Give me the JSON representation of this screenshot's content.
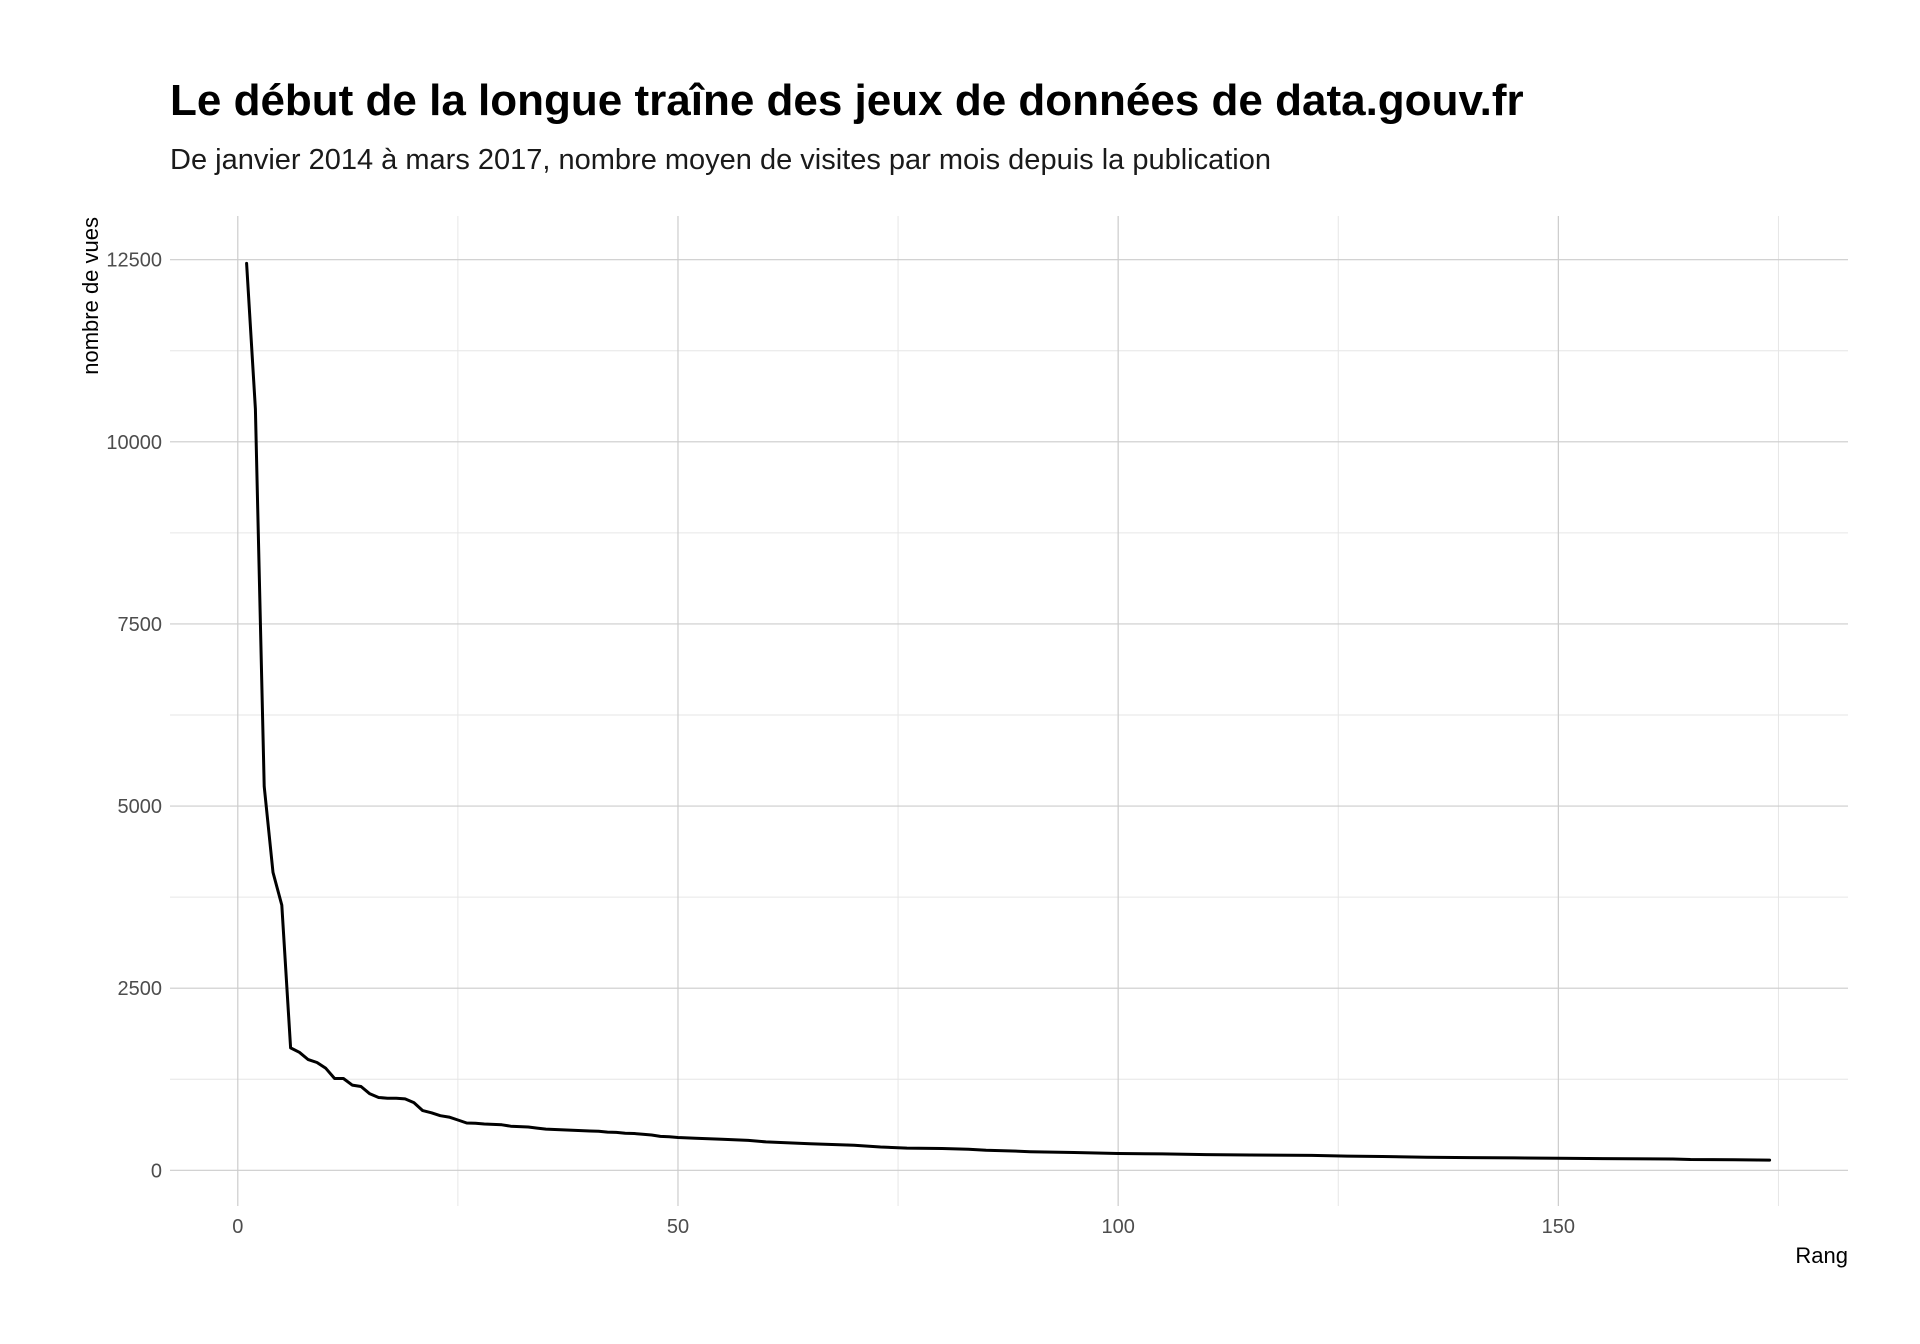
{
  "chart_data": {
    "type": "line",
    "title": "Le début de la longue traîne des jeux de données de data.gouv.fr",
    "subtitle": "De janvier 2014 à mars 2017, nombre moyen de visites par mois depuis la publication",
    "xlabel": "Rang",
    "ylabel": "nombre de vues",
    "xlim": [
      -7.7,
      182.9
    ],
    "ylim": [
      -490,
      13100
    ],
    "x_ticks": [
      0,
      50,
      100,
      150
    ],
    "x_tick_labels": [
      "0",
      "50",
      "100",
      "150"
    ],
    "x_minor_ticks": [
      25,
      75,
      125,
      175
    ],
    "y_ticks": [
      0,
      2500,
      5000,
      7500,
      10000,
      12500
    ],
    "y_tick_labels": [
      "0",
      "2500",
      "5000",
      "7500",
      "10000",
      "12500"
    ],
    "y_minor_ticks": [
      1250,
      3750,
      6250,
      8750,
      11250
    ],
    "grid": true,
    "legend": "none",
    "colors": {
      "line": "#000000",
      "grid_major": "#cccccc",
      "grid_minor": "#e6e6e6",
      "background": "#ffffff"
    },
    "series": [
      {
        "points": [
          [
            1,
            12450
          ],
          [
            2,
            10450
          ],
          [
            3,
            5270
          ],
          [
            4,
            4090
          ],
          [
            5,
            3640
          ],
          [
            6,
            1680
          ],
          [
            7,
            1620
          ],
          [
            8,
            1520
          ],
          [
            9,
            1480
          ],
          [
            10,
            1400
          ],
          [
            11,
            1260
          ],
          [
            12,
            1260
          ],
          [
            13,
            1170
          ],
          [
            14,
            1150
          ],
          [
            15,
            1050
          ],
          [
            16,
            1000
          ],
          [
            17,
            990
          ],
          [
            18,
            990
          ],
          [
            19,
            980
          ],
          [
            20,
            930
          ],
          [
            21,
            820
          ],
          [
            22,
            790
          ],
          [
            23,
            750
          ],
          [
            24,
            730
          ],
          [
            25,
            690
          ],
          [
            26,
            650
          ],
          [
            27,
            645
          ],
          [
            28,
            635
          ],
          [
            29,
            630
          ],
          [
            30,
            625
          ],
          [
            31,
            605
          ],
          [
            32,
            600
          ],
          [
            33,
            595
          ],
          [
            34,
            580
          ],
          [
            35,
            565
          ],
          [
            36,
            560
          ],
          [
            37,
            555
          ],
          [
            38,
            550
          ],
          [
            39,
            545
          ],
          [
            40,
            540
          ],
          [
            41,
            535
          ],
          [
            42,
            525
          ],
          [
            43,
            520
          ],
          [
            44,
            510
          ],
          [
            45,
            505
          ],
          [
            46,
            495
          ],
          [
            47,
            485
          ],
          [
            48,
            465
          ],
          [
            49,
            460
          ],
          [
            50,
            450
          ],
          [
            52,
            440
          ],
          [
            55,
            425
          ],
          [
            58,
            410
          ],
          [
            60,
            390
          ],
          [
            62,
            380
          ],
          [
            65,
            365
          ],
          [
            70,
            345
          ],
          [
            73,
            320
          ],
          [
            76,
            305
          ],
          [
            80,
            300
          ],
          [
            83,
            290
          ],
          [
            85,
            275
          ],
          [
            88,
            265
          ],
          [
            90,
            255
          ],
          [
            95,
            245
          ],
          [
            100,
            230
          ],
          [
            105,
            225
          ],
          [
            110,
            215
          ],
          [
            115,
            210
          ],
          [
            122,
            205
          ],
          [
            126,
            195
          ],
          [
            130,
            190
          ],
          [
            135,
            180
          ],
          [
            140,
            175
          ],
          [
            145,
            170
          ],
          [
            150,
            165
          ],
          [
            155,
            160
          ],
          [
            163,
            155
          ],
          [
            165,
            148
          ],
          [
            170,
            145
          ],
          [
            174,
            140
          ]
        ]
      }
    ]
  }
}
